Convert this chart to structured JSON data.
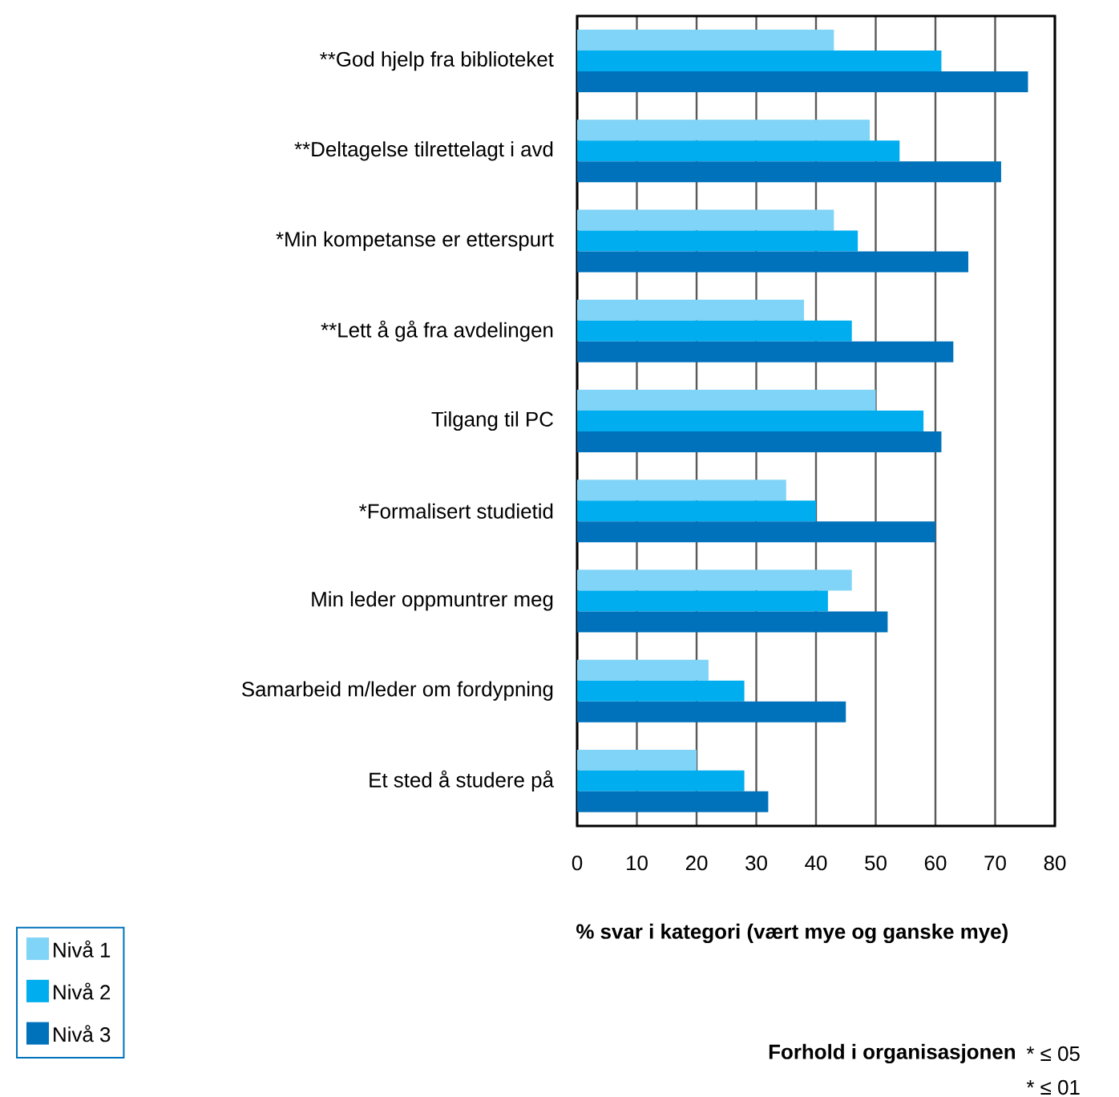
{
  "chart_data": {
    "type": "bar",
    "orientation": "horizontal",
    "xlabel": "% svar i kategori (vært mye og ganske mye)",
    "categories": [
      "**God hjelp fra biblioteket",
      "**Deltagelse tilrettelagt i avd",
      "*Min kompetanse er etterspurt",
      "**Lett å gå fra avdelingen",
      "Tilgang til PC",
      "*Formalisert studietid",
      "Min leder oppmuntrer meg",
      "Samarbeid m/leder om fordypning",
      "Et sted å studere på"
    ],
    "series": [
      {
        "name": "Nivå 1",
        "color": "#7fd4f7",
        "values": [
          43,
          49,
          43,
          38,
          50,
          35,
          46,
          22,
          20
        ]
      },
      {
        "name": "Nivå 2",
        "color": "#00aeef",
        "values": [
          61,
          54,
          47,
          46,
          58,
          40,
          42,
          28,
          28
        ]
      },
      {
        "name": "Nivå 3",
        "color": "#0072bc",
        "values": [
          75.5,
          71,
          65.5,
          63,
          61,
          60,
          52,
          45,
          32
        ]
      }
    ],
    "xlim": [
      0,
      80
    ],
    "xticks": [
      0,
      10,
      20,
      30,
      40,
      50,
      60,
      70,
      80
    ],
    "grid": "x",
    "legend": "bottom left",
    "annotations": [
      "Forhold i organisasjonen",
      "* ≤ 05",
      "* ≤ 01"
    ]
  }
}
